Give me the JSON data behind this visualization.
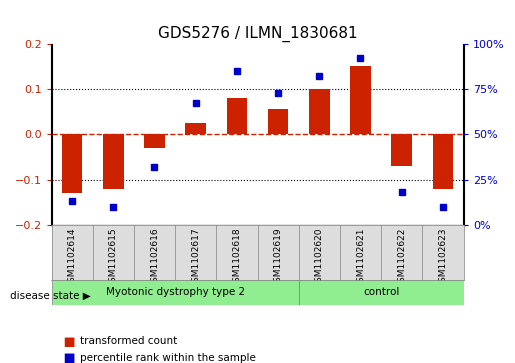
{
  "title": "GDS5276 / ILMN_1830681",
  "samples": [
    "GSM1102614",
    "GSM1102615",
    "GSM1102616",
    "GSM1102617",
    "GSM1102618",
    "GSM1102619",
    "GSM1102620",
    "GSM1102621",
    "GSM1102622",
    "GSM1102623"
  ],
  "transformed_count": [
    -0.13,
    -0.12,
    -0.03,
    0.025,
    0.08,
    0.055,
    0.1,
    0.15,
    -0.07,
    -0.12
  ],
  "percentile_rank": [
    13,
    10,
    32,
    67,
    85,
    73,
    82,
    92,
    18,
    10
  ],
  "bar_color": "#cc2200",
  "dot_color": "#0000cc",
  "ylim_left": [
    -0.2,
    0.2
  ],
  "ylim_right": [
    0,
    100
  ],
  "yticks_left": [
    -0.2,
    -0.1,
    0.0,
    0.1,
    0.2
  ],
  "yticks_right": [
    0,
    25,
    50,
    75,
    100
  ],
  "ytick_labels_right": [
    "0%",
    "25%",
    "50%",
    "75%",
    "100%"
  ],
  "disease_groups": [
    {
      "label": "Myotonic dystrophy type 2",
      "start": 0,
      "end": 6,
      "color": "#90ee90"
    },
    {
      "label": "control",
      "start": 6,
      "end": 10,
      "color": "#90ee90"
    }
  ],
  "disease_state_label": "disease state",
  "legend_bar_label": "transformed count",
  "legend_dot_label": "percentile rank within the sample",
  "hline_zero_color": "#cc2200",
  "hline_dotted_color": "#000000",
  "grid_color": "#cccccc",
  "bg_color": "#ffffff",
  "plot_bg": "#ffffff",
  "bar_width": 0.5,
  "tick_label_color_left": "#cc2200",
  "tick_label_color_right": "#0000cc"
}
